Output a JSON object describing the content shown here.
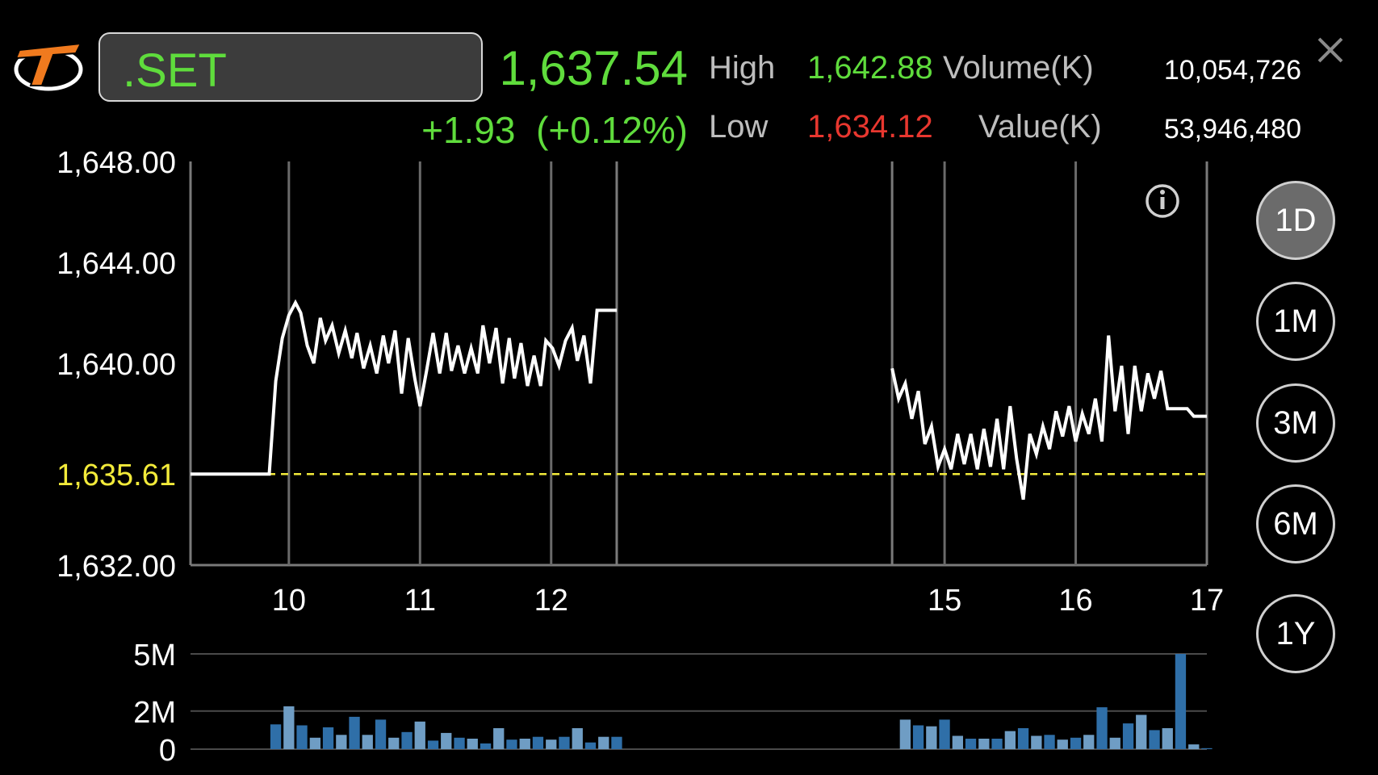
{
  "header": {
    "symbol": ".SET",
    "last_price": "1,637.54",
    "change": "+1.93",
    "change_pct": "(+0.12%)",
    "high_label": "High",
    "high_value": "1,642.88",
    "low_label": "Low",
    "low_value": "1,634.12",
    "volume_label": "Volume(K)",
    "volume_value": "10,054,726",
    "value_label": "Value(K)",
    "value_value": "53,946,480",
    "close_icon": "close-icon",
    "logo_icon": "brand-logo"
  },
  "colors": {
    "up": "#5fdc3c",
    "down": "#e8372f",
    "reference": "#f2ea3a",
    "line": "#ffffff",
    "volume_bar_dark": "#2f6fa8",
    "volume_bar_light": "#6f9dc4"
  },
  "timeframes": [
    {
      "label": "1D",
      "active": true
    },
    {
      "label": "1M",
      "active": false
    },
    {
      "label": "3M",
      "active": false
    },
    {
      "label": "6M",
      "active": false
    },
    {
      "label": "1Y",
      "active": false
    }
  ],
  "info_icon": "info-icon",
  "chart_data": [
    {
      "type": "line",
      "y_ticks": [
        "1,648.00",
        "1,644.00",
        "1,640.00",
        "1,632.00"
      ],
      "ylim": [
        1632,
        1648
      ],
      "reference_label": "1,635.61",
      "reference_value": 1635.61,
      "x_ticks": [
        "10",
        "11",
        "12",
        "15",
        "16",
        "17"
      ],
      "xlim": [
        9.25,
        17
      ],
      "sessions": [
        {
          "x": [
            9.25,
            9.85,
            9.9,
            9.95,
            10.0,
            10.05,
            10.09,
            10.14,
            10.19,
            10.24,
            10.28,
            10.33,
            10.38,
            10.43,
            10.48,
            10.52,
            10.57,
            10.62,
            10.67,
            10.72,
            10.76,
            10.81,
            10.86,
            10.91,
            10.96,
            11.0,
            11.05,
            11.1,
            11.15,
            11.2,
            11.24,
            11.29,
            11.34,
            11.39,
            11.44,
            11.48,
            11.53,
            11.58,
            11.63,
            11.68,
            11.72,
            11.77,
            11.82,
            11.87,
            11.92,
            11.96,
            12.01,
            12.06,
            12.11,
            12.16,
            12.2,
            12.25,
            12.3,
            12.35,
            12.4,
            12.45,
            12.5
          ],
          "y": [
            1635.61,
            1635.61,
            1639.3,
            1641.0,
            1641.9,
            1642.4,
            1642.0,
            1640.7,
            1640.0,
            1641.8,
            1640.9,
            1641.5,
            1640.4,
            1641.3,
            1640.2,
            1641.2,
            1639.8,
            1640.7,
            1639.6,
            1641.1,
            1640.0,
            1641.3,
            1638.8,
            1641.0,
            1639.4,
            1638.3,
            1639.7,
            1641.2,
            1639.6,
            1641.2,
            1639.7,
            1640.7,
            1639.6,
            1640.6,
            1639.6,
            1641.5,
            1640.0,
            1641.4,
            1639.2,
            1641.0,
            1639.4,
            1640.8,
            1639.1,
            1640.3,
            1639.1,
            1640.9,
            1640.6,
            1639.9,
            1640.9,
            1641.4,
            1640.1,
            1641.1,
            1639.2,
            1642.1,
            1642.1,
            1642.1,
            1642.1
          ]
        },
        {
          "x": [
            14.6,
            14.65,
            14.7,
            14.75,
            14.8,
            14.85,
            14.9,
            14.95,
            15.0,
            15.05,
            15.1,
            15.15,
            15.2,
            15.25,
            15.3,
            15.35,
            15.4,
            15.45,
            15.5,
            15.55,
            15.6,
            15.65,
            15.7,
            15.75,
            15.8,
            15.85,
            15.9,
            15.95,
            16.0,
            16.05,
            16.1,
            16.15,
            16.2,
            16.25,
            16.3,
            16.35,
            16.4,
            16.45,
            16.5,
            16.55,
            16.6,
            16.65,
            16.7,
            16.75,
            16.8,
            16.85,
            16.9,
            16.95,
            17.0
          ],
          "y": [
            1639.8,
            1638.6,
            1639.2,
            1637.8,
            1638.9,
            1636.8,
            1637.5,
            1635.9,
            1636.6,
            1635.8,
            1637.2,
            1636.0,
            1637.2,
            1635.8,
            1637.4,
            1635.9,
            1637.8,
            1635.8,
            1638.3,
            1636.2,
            1634.6,
            1637.2,
            1636.4,
            1637.5,
            1636.6,
            1638.1,
            1637.1,
            1638.3,
            1636.9,
            1638.0,
            1637.2,
            1638.6,
            1636.9,
            1641.1,
            1638.1,
            1639.9,
            1637.2,
            1639.9,
            1638.1,
            1639.6,
            1638.6,
            1639.7,
            1638.2,
            1638.2,
            1638.2,
            1638.2,
            1637.9,
            1637.9,
            1637.9
          ]
        }
      ],
      "session_markers": [
        12.5,
        14.6
      ]
    },
    {
      "type": "bar",
      "title": "",
      "y_ticks": [
        "5M",
        "2M",
        "0"
      ],
      "ylim": [
        0,
        5
      ],
      "x": [
        9.9,
        10.0,
        10.1,
        10.2,
        10.3,
        10.4,
        10.5,
        10.6,
        10.7,
        10.8,
        10.9,
        11.0,
        11.1,
        11.2,
        11.3,
        11.4,
        11.5,
        11.6,
        11.7,
        11.8,
        11.9,
        12.0,
        12.1,
        12.2,
        12.3,
        12.4,
        12.5,
        14.7,
        14.8,
        14.9,
        15.0,
        15.1,
        15.2,
        15.3,
        15.4,
        15.5,
        15.6,
        15.7,
        15.8,
        15.9,
        16.0,
        16.1,
        16.2,
        16.3,
        16.4,
        16.5,
        16.6,
        16.7,
        16.8,
        16.9,
        17.0
      ],
      "values": [
        1.3,
        2.25,
        1.25,
        0.6,
        1.15,
        0.75,
        1.7,
        0.75,
        1.55,
        0.6,
        0.9,
        1.45,
        0.45,
        0.85,
        0.6,
        0.55,
        0.3,
        1.1,
        0.5,
        0.55,
        0.65,
        0.5,
        0.65,
        1.1,
        0.35,
        0.65,
        0.65,
        1.55,
        1.25,
        1.2,
        1.55,
        0.7,
        0.55,
        0.55,
        0.55,
        0.95,
        1.1,
        0.7,
        0.75,
        0.5,
        0.6,
        0.75,
        2.2,
        0.6,
        1.35,
        1.8,
        1.0,
        1.1,
        5.0,
        0.25,
        0.05
      ]
    }
  ]
}
